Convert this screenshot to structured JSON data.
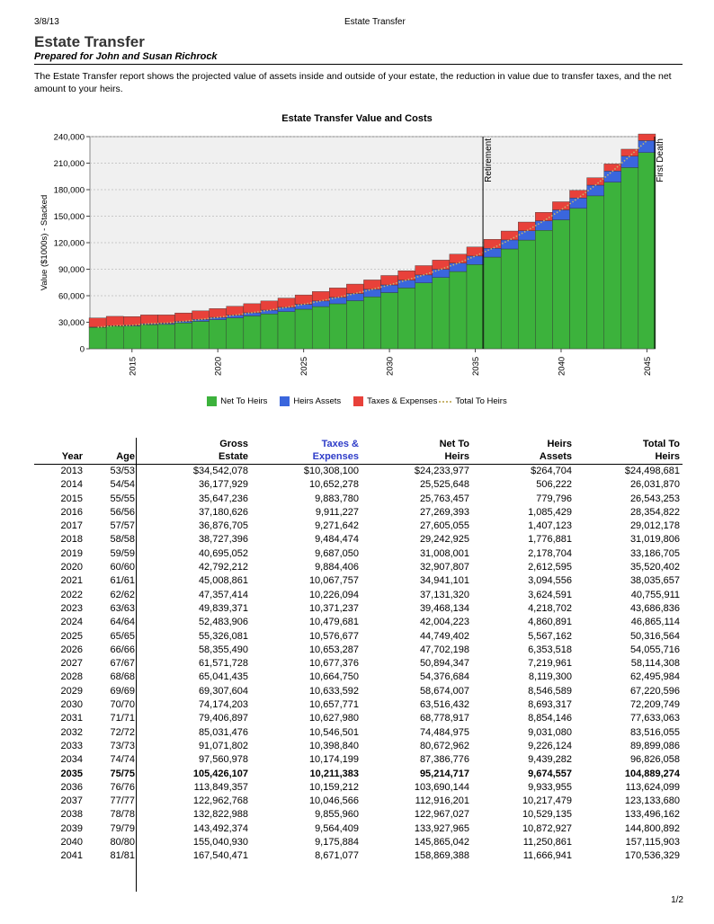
{
  "header": {
    "date": "3/8/13",
    "center": "Estate Transfer"
  },
  "title": "Estate Transfer",
  "subtitle": "Prepared for John and Susan Richrock",
  "intro": "The Estate Transfer report shows the projected value of assets inside and outside of your estate, the reduction in value due to transfer taxes, and the net amount to your heirs.",
  "chart_data": {
    "type": "bar",
    "stacked": true,
    "title": "Estate Transfer Value and Costs",
    "ylabel": "Value ($1000s) - Stacked",
    "xlabel": "",
    "ylim": [
      0,
      240000
    ],
    "yticks": [
      "0",
      "30,000",
      "60,000",
      "90,000",
      "120,000",
      "150,000",
      "180,000",
      "210,000",
      "240,000"
    ],
    "xticks": [
      "2015",
      "2020",
      "2025",
      "2030",
      "2035",
      "2040",
      "2045"
    ],
    "grid": true,
    "legend_position": "bottom",
    "x": [
      2013,
      2014,
      2015,
      2016,
      2017,
      2018,
      2019,
      2020,
      2021,
      2022,
      2023,
      2024,
      2025,
      2026,
      2027,
      2028,
      2029,
      2030,
      2031,
      2032,
      2033,
      2034,
      2035,
      2036,
      2037,
      2038,
      2039,
      2040,
      2041,
      2042,
      2043,
      2044,
      2045
    ],
    "series": [
      {
        "name": "Net To Heirs",
        "color": "#3cb23c",
        "values": [
          24234,
          25526,
          25763,
          27269,
          27605,
          29243,
          31008,
          32908,
          34941,
          37131,
          39468,
          42004,
          44749,
          47702,
          50894,
          54377,
          58674,
          63516,
          68779,
          74485,
          80673,
          87387,
          95215,
          103690,
          112916,
          122967,
          133928,
          145865,
          158869,
          173000,
          188500,
          205000,
          222000
        ]
      },
      {
        "name": "Heirs Assets",
        "color": "#3a66dd",
        "values": [
          265,
          506,
          780,
          1085,
          1407,
          1777,
          2179,
          2613,
          3095,
          3625,
          4219,
          4861,
          5567,
          6354,
          7220,
          8119,
          8547,
          8693,
          8854,
          9031,
          9226,
          9439,
          9675,
          9934,
          10217,
          10529,
          10873,
          11251,
          11667,
          12100,
          12500,
          13000,
          13500
        ]
      },
      {
        "name": "Taxes & Expenses",
        "color": "#e8413a",
        "values": [
          10308,
          10652,
          9884,
          9911,
          9272,
          9484,
          9687,
          9884,
          10068,
          10226,
          10371,
          10480,
          10577,
          10653,
          10677,
          10665,
          10634,
          10658,
          10628,
          10547,
          10399,
          10174,
          10211,
          10159,
          10047,
          9856,
          9564,
          9176,
          8671,
          8400,
          8100,
          7800,
          7500
        ]
      },
      {
        "name": "Total To Heirs",
        "color": "#c8b46e",
        "line": true
      }
    ],
    "annotations": [
      {
        "x": 2035,
        "label": "Retirement"
      },
      {
        "x": 2045,
        "label": "First Death"
      }
    ]
  },
  "table": {
    "headers": {
      "year": "Year",
      "age": "Age",
      "gross1": "Gross",
      "gross2": "Estate",
      "tax1": "Taxes &",
      "tax2": "Expenses",
      "net1": "Net To",
      "net2": "Heirs",
      "heirs1": "Heirs",
      "heirs2": "Assets",
      "total1": "Total To",
      "total2": "Heirs"
    },
    "rows": [
      {
        "year": "2013",
        "age": "53/53",
        "gross": "$34,542,078",
        "tax": "$10,308,100",
        "net": "$24,233,977",
        "heirs": "$264,704",
        "total": "$24,498,681"
      },
      {
        "year": "2014",
        "age": "54/54",
        "gross": "36,177,929",
        "tax": "10,652,278",
        "net": "25,525,648",
        "heirs": "506,222",
        "total": "26,031,870"
      },
      {
        "year": "2015",
        "age": "55/55",
        "gross": "35,647,236",
        "tax": "9,883,780",
        "net": "25,763,457",
        "heirs": "779,796",
        "total": "26,543,253"
      },
      {
        "year": "2016",
        "age": "56/56",
        "gross": "37,180,626",
        "tax": "9,911,227",
        "net": "27,269,393",
        "heirs": "1,085,429",
        "total": "28,354,822"
      },
      {
        "year": "2017",
        "age": "57/57",
        "gross": "36,876,705",
        "tax": "9,271,642",
        "net": "27,605,055",
        "heirs": "1,407,123",
        "total": "29,012,178"
      },
      {
        "year": "2018",
        "age": "58/58",
        "gross": "38,727,396",
        "tax": "9,484,474",
        "net": "29,242,925",
        "heirs": "1,776,881",
        "total": "31,019,806"
      },
      {
        "year": "2019",
        "age": "59/59",
        "gross": "40,695,052",
        "tax": "9,687,050",
        "net": "31,008,001",
        "heirs": "2,178,704",
        "total": "33,186,705"
      },
      {
        "year": "2020",
        "age": "60/60",
        "gross": "42,792,212",
        "tax": "9,884,406",
        "net": "32,907,807",
        "heirs": "2,612,595",
        "total": "35,520,402"
      },
      {
        "year": "2021",
        "age": "61/61",
        "gross": "45,008,861",
        "tax": "10,067,757",
        "net": "34,941,101",
        "heirs": "3,094,556",
        "total": "38,035,657"
      },
      {
        "year": "2022",
        "age": "62/62",
        "gross": "47,357,414",
        "tax": "10,226,094",
        "net": "37,131,320",
        "heirs": "3,624,591",
        "total": "40,755,911"
      },
      {
        "year": "2023",
        "age": "63/63",
        "gross": "49,839,371",
        "tax": "10,371,237",
        "net": "39,468,134",
        "heirs": "4,218,702",
        "total": "43,686,836"
      },
      {
        "year": "2024",
        "age": "64/64",
        "gross": "52,483,906",
        "tax": "10,479,681",
        "net": "42,004,223",
        "heirs": "4,860,891",
        "total": "46,865,114"
      },
      {
        "year": "2025",
        "age": "65/65",
        "gross": "55,326,081",
        "tax": "10,576,677",
        "net": "44,749,402",
        "heirs": "5,567,162",
        "total": "50,316,564"
      },
      {
        "year": "2026",
        "age": "66/66",
        "gross": "58,355,490",
        "tax": "10,653,287",
        "net": "47,702,198",
        "heirs": "6,353,518",
        "total": "54,055,716"
      },
      {
        "year": "2027",
        "age": "67/67",
        "gross": "61,571,728",
        "tax": "10,677,376",
        "net": "50,894,347",
        "heirs": "7,219,961",
        "total": "58,114,308"
      },
      {
        "year": "2028",
        "age": "68/68",
        "gross": "65,041,435",
        "tax": "10,664,750",
        "net": "54,376,684",
        "heirs": "8,119,300",
        "total": "62,495,984"
      },
      {
        "year": "2029",
        "age": "69/69",
        "gross": "69,307,604",
        "tax": "10,633,592",
        "net": "58,674,007",
        "heirs": "8,546,589",
        "total": "67,220,596"
      },
      {
        "year": "2030",
        "age": "70/70",
        "gross": "74,174,203",
        "tax": "10,657,771",
        "net": "63,516,432",
        "heirs": "8,693,317",
        "total": "72,209,749"
      },
      {
        "year": "2031",
        "age": "71/71",
        "gross": "79,406,897",
        "tax": "10,627,980",
        "net": "68,778,917",
        "heirs": "8,854,146",
        "total": "77,633,063"
      },
      {
        "year": "2032",
        "age": "72/72",
        "gross": "85,031,476",
        "tax": "10,546,501",
        "net": "74,484,975",
        "heirs": "9,031,080",
        "total": "83,516,055"
      },
      {
        "year": "2033",
        "age": "73/73",
        "gross": "91,071,802",
        "tax": "10,398,840",
        "net": "80,672,962",
        "heirs": "9,226,124",
        "total": "89,899,086"
      },
      {
        "year": "2034",
        "age": "74/74",
        "gross": "97,560,978",
        "tax": "10,174,199",
        "net": "87,386,776",
        "heirs": "9,439,282",
        "total": "96,826,058"
      },
      {
        "year": "2035",
        "age": "75/75",
        "gross": "105,426,107",
        "tax": "10,211,383",
        "net": "95,214,717",
        "heirs": "9,674,557",
        "total": "104,889,274",
        "bold": true
      },
      {
        "year": "2036",
        "age": "76/76",
        "gross": "113,849,357",
        "tax": "10,159,212",
        "net": "103,690,144",
        "heirs": "9,933,955",
        "total": "113,624,099"
      },
      {
        "year": "2037",
        "age": "77/77",
        "gross": "122,962,768",
        "tax": "10,046,566",
        "net": "112,916,201",
        "heirs": "10,217,479",
        "total": "123,133,680"
      },
      {
        "year": "2038",
        "age": "78/78",
        "gross": "132,822,988",
        "tax": "9,855,960",
        "net": "122,967,027",
        "heirs": "10,529,135",
        "total": "133,496,162"
      },
      {
        "year": "2039",
        "age": "79/79",
        "gross": "143,492,374",
        "tax": "9,564,409",
        "net": "133,927,965",
        "heirs": "10,872,927",
        "total": "144,800,892"
      },
      {
        "year": "2040",
        "age": "80/80",
        "gross": "155,040,930",
        "tax": "9,175,884",
        "net": "145,865,042",
        "heirs": "11,250,861",
        "total": "157,115,903"
      },
      {
        "year": "2041",
        "age": "81/81",
        "gross": "167,540,471",
        "tax": "8,671,077",
        "net": "158,869,388",
        "heirs": "11,666,941",
        "total": "170,536,329"
      }
    ]
  },
  "page": "1/2"
}
